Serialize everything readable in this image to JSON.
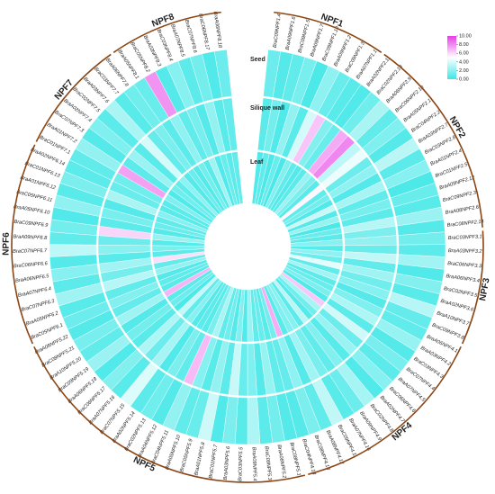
{
  "chart_data": {
    "type": "circular-heatmap",
    "tracks": [
      "Seed",
      "Silique wall",
      "Leaf"
    ],
    "colorlim": [
      0,
      10
    ],
    "colors": [
      "#3ee6e6",
      "#ffffff",
      "#e63ee6"
    ],
    "colorbar_ticks": [
      {
        "value": 10,
        "label": "10.00"
      },
      {
        "value": 8,
        "label": "8.00"
      },
      {
        "value": 6,
        "label": "6.00"
      },
      {
        "value": 4,
        "label": "4.00"
      },
      {
        "value": 2,
        "label": "2.00"
      },
      {
        "value": 0,
        "label": "0.00"
      }
    ],
    "arc_color": "#8b4513",
    "groups": [
      {
        "name": "NPF1",
        "genes": [
          "BraC09NPF1.4",
          "BraA09NPF1.6",
          "BraC09NPF1.5",
          "BraA09NPF1.7",
          "BraC09NPF1.10",
          "BraA09NPF1.2",
          "BraC09NPF1.3",
          "BraA07NPF1.1"
        ],
        "values": [
          [
            1.2,
            0.8,
            0.5
          ],
          [
            0.6,
            1.4,
            0.9
          ],
          [
            0.9,
            0.5,
            0.4
          ],
          [
            1.5,
            2.2,
            1.1
          ],
          [
            0.4,
            0.7,
            0.3
          ],
          [
            2.1,
            3.9,
            1.8
          ],
          [
            1.1,
            6.5,
            0.9
          ],
          [
            0.7,
            1.8,
            0.6
          ]
        ]
      },
      {
        "name": "NPF2",
        "genes": [
          "BraA02NPF2.11",
          "BraC02NPF2.13",
          "BraA06NPF2.9",
          "BraC06NPF2.10",
          "BraA05NPF2.1",
          "BraC04NPF2.2",
          "BraA03NPF2.7",
          "BraC03NPF2.8",
          "BraA01NPF2.4",
          "BraC01NPF2.5",
          "BraA09NPF2.12",
          "BraC09NPF2.3",
          "BraA08NPF2.6",
          "BraC08NPF2.14"
        ],
        "values": [
          [
            0.5,
            1.1,
            0.8
          ],
          [
            1.3,
            7.2,
            2.4
          ],
          [
            2.8,
            8.1,
            1.6
          ],
          [
            0.9,
            3.3,
            0.7
          ],
          [
            1.7,
            4.5,
            5.2
          ],
          [
            0.6,
            1.2,
            0.9
          ],
          [
            3.2,
            2.1,
            1.4
          ],
          [
            0.8,
            0.6,
            0.5
          ],
          [
            1.9,
            2.7,
            3.6
          ],
          [
            0.4,
            0.9,
            0.6
          ],
          [
            1.1,
            1.5,
            2.3
          ],
          [
            0.7,
            0.8,
            0.4
          ],
          [
            2.4,
            3.1,
            1.2
          ],
          [
            0.6,
            1.6,
            0.8
          ]
        ]
      },
      {
        "name": "NPF3",
        "genes": [
          "BraC03NPF3.1",
          "BraA03NPF3.2",
          "BraC06NPF3.3",
          "BraA06NPF3.4",
          "BraC02NPF3.5",
          "BraA02NPF3.6",
          "BraA10NPF3.7",
          "BraC09NPF3.8"
        ],
        "values": [
          [
            1.4,
            2.2,
            1.9
          ],
          [
            0.8,
            1.1,
            0.7
          ],
          [
            2.6,
            3.4,
            2.1
          ],
          [
            0.5,
            0.9,
            1.2
          ],
          [
            1.8,
            2.5,
            4.3
          ],
          [
            0.7,
            1.3,
            0.9
          ],
          [
            3.1,
            1.9,
            2.6
          ],
          [
            1.0,
            0.6,
            0.8
          ]
        ]
      },
      {
        "name": "NPF4",
        "genes": [
          "BraA06NPF4.1",
          "BraA03NPF4.2",
          "BraC03NPF4.3",
          "BraC07NPF4.4",
          "BraA07NPF4.5",
          "BraC06NPF4.6",
          "BraA02NPF4.7",
          "BraC02NPF4.8",
          "BraA09NPF4.9",
          "BraA07NPF4.10",
          "BraC09NPF4.11",
          "BraA08NPF4.12",
          "BraC08NPF4.13",
          "BraC04NPF4.14"
        ],
        "values": [
          [
            0.9,
            1.7,
            1.1
          ],
          [
            2.3,
            2.9,
            1.6
          ],
          [
            0.6,
            0.8,
            0.5
          ],
          [
            1.5,
            3.8,
            6.4
          ],
          [
            0.8,
            1.2,
            2.7
          ],
          [
            1.9,
            2.4,
            1.3
          ],
          [
            0.5,
            0.7,
            0.6
          ],
          [
            2.7,
            1.8,
            3.2
          ],
          [
            1.2,
            0.9,
            0.8
          ],
          [
            0.7,
            1.5,
            1.9
          ],
          [
            3.4,
            2.6,
            1.7
          ],
          [
            0.9,
            0.6,
            0.7
          ],
          [
            1.6,
            2.1,
            7.1
          ],
          [
            0.6,
            1.0,
            1.4
          ]
        ]
      },
      {
        "name": "NPF5",
        "genes": [
          "BraC08NPF5.1",
          "BraA08NPF5.2",
          "BraC09NPF5.3",
          "BraA09NPF5.4",
          "BraC03NPF5.5",
          "BraA03NPF5.6",
          "BraC01NPF5.7",
          "BraA01NPF5.8",
          "BraC05NPF5.9",
          "BraA05NPF5.10",
          "BraC04NPF5.11",
          "BraA04NPF5.12",
          "BraC02NPF5.13",
          "BraA02NPF5.14",
          "BraC07NPF5.15",
          "BraA07NPF5.16",
          "BraC06NPF5.17",
          "BraA06NPF5.18",
          "BraC09NPF5.19",
          "BraA10NPF5.20",
          "BraC08NPF5.21",
          "BraA08NPF5.22"
        ],
        "values": [
          [
            0.6,
            0.9,
            0.7
          ],
          [
            1.4,
            2.3,
            1.1
          ],
          [
            0.8,
            0.6,
            0.9
          ],
          [
            2.9,
            1.7,
            2.4
          ],
          [
            0.7,
            1.1,
            0.5
          ],
          [
            1.6,
            3.6,
            1.8
          ],
          [
            0.5,
            0.8,
            0.6
          ],
          [
            3.7,
            2.2,
            1.3
          ],
          [
            1.1,
            0.7,
            0.9
          ],
          [
            0.9,
            1.9,
            2.8
          ],
          [
            2.2,
            6.8,
            1.5
          ],
          [
            0.6,
            0.9,
            0.7
          ],
          [
            1.3,
            1.6,
            0.8
          ],
          [
            0.8,
            0.5,
            0.6
          ],
          [
            4.1,
            2.7,
            1.9
          ],
          [
            0.7,
            1.2,
            1.0
          ],
          [
            1.8,
            2.9,
            3.5
          ],
          [
            0.5,
            0.7,
            0.4
          ],
          [
            2.4,
            1.4,
            1.2
          ],
          [
            0.9,
            0.6,
            0.8
          ],
          [
            1.5,
            2.5,
            6.9
          ],
          [
            0.6,
            1.0,
            0.7
          ]
        ]
      },
      {
        "name": "NPF6",
        "genes": [
          "BraC05NPF6.1",
          "BraA05NPF6.2",
          "BraC07NPF6.3",
          "BraA07NPF6.4",
          "BraA06NPF6.5",
          "BraC06NPF6.6",
          "BraC07NPF6.7",
          "BraA09NPF6.8",
          "BraC09NPF6.9",
          "BraA05NPF6.10",
          "BraC05NPF6.11",
          "BraA01NPF6.12",
          "BraC01NPF6.13",
          "BraA02NPF6.14"
        ],
        "values": [
          [
            1.2,
            1.8,
            0.9
          ],
          [
            0.7,
            0.9,
            0.6
          ],
          [
            2.5,
            3.1,
            2.2
          ],
          [
            0.8,
            1.4,
            1.0
          ],
          [
            1.9,
            2.6,
            5.8
          ],
          [
            0.6,
            0.7,
            0.8
          ],
          [
            3.3,
            2.0,
            1.6
          ],
          [
            0.9,
            1.2,
            0.7
          ],
          [
            1.4,
            6.1,
            2.3
          ],
          [
            0.5,
            0.8,
            0.6
          ],
          [
            2.1,
            1.5,
            1.2
          ],
          [
            0.7,
            0.6,
            0.9
          ],
          [
            1.6,
            2.8,
            1.9
          ],
          [
            0.8,
            1.1,
            0.7
          ]
        ]
      },
      {
        "name": "NPF7",
        "genes": [
          "BraC01NPF7.1",
          "BraA01NPF7.2",
          "BraC07NPF7.3",
          "BraA02NPF7.4",
          "BraC02NPF7.5",
          "BraA03NPF7.6",
          "BraC03NPF7.7",
          "BraA06NPF7.8"
        ],
        "values": [
          [
            0.9,
            1.3,
            0.8
          ],
          [
            2.2,
            7.4,
            1.7
          ],
          [
            0.6,
            0.8,
            0.5
          ],
          [
            1.7,
            2.4,
            1.3
          ],
          [
            0.8,
            0.7,
            0.9
          ],
          [
            2.8,
            3.9,
            2.1
          ],
          [
            0.7,
            1.0,
            0.6
          ],
          [
            1.3,
            1.6,
            1.2
          ]
        ]
      },
      {
        "name": "NPF8",
        "genes": [
          "BraA05NPF8.1",
          "BraC05NPF8.2",
          "BraA03NPF8.3",
          "BraC03NPF8.4",
          "BraA07NPF8.5",
          "BraC07NPF8.6",
          "BraC06NPF8.17",
          "BraA06NPF8.18"
        ],
        "values": [
          [
            1.1,
            0.8,
            0.6
          ],
          [
            7.8,
            2.1,
            1.4
          ],
          [
            0.6,
            0.9,
            0.7
          ],
          [
            1.9,
            1.5,
            2.6
          ],
          [
            0.8,
            0.6,
            0.5
          ],
          [
            1.4,
            2.2,
            1.1
          ],
          [
            0.5,
            0.7,
            0.8
          ],
          [
            1.2,
            1.0,
            0.9
          ]
        ]
      }
    ]
  }
}
